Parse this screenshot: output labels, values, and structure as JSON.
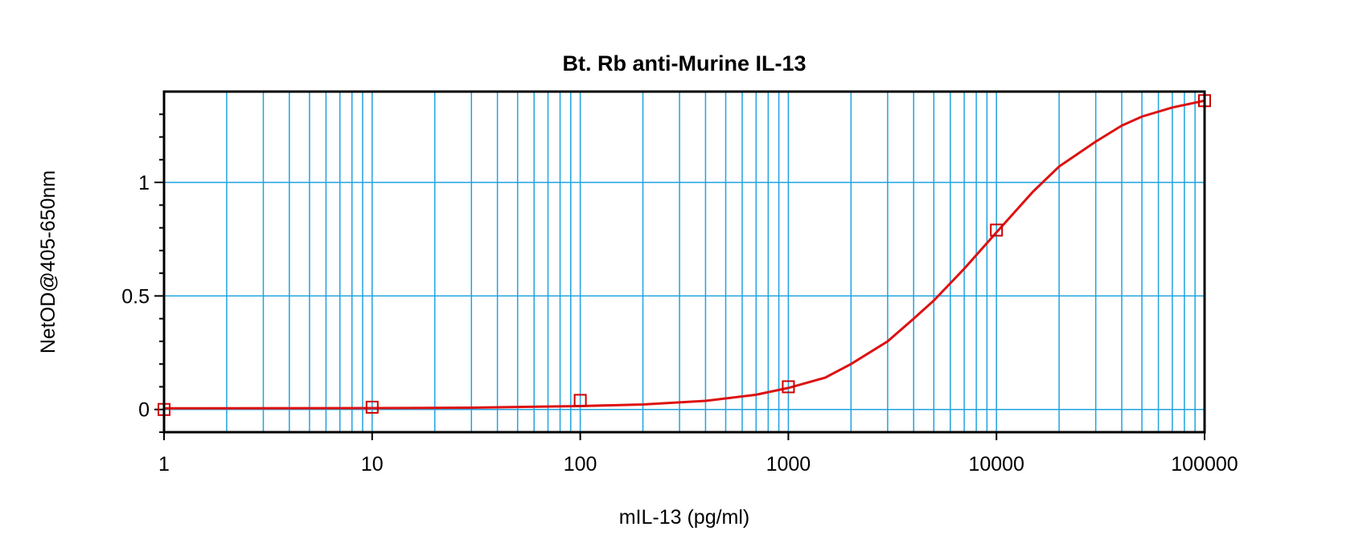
{
  "chart_data": {
    "type": "line",
    "title": "Bt. Rb anti-Murine IL-13",
    "xlabel": "mIL-13 (pg/ml)",
    "ylabel": "NetOD@405-650nm",
    "x_scale": "log",
    "xlim": [
      1,
      100000
    ],
    "ylim": [
      -0.1,
      1.4
    ],
    "x_ticks": [
      1,
      10,
      100,
      1000,
      10000,
      100000
    ],
    "x_tick_labels": [
      "1",
      "10",
      "100",
      "1000",
      "10000",
      "100000"
    ],
    "y_ticks": [
      0,
      0.5,
      1
    ],
    "y_tick_labels": [
      "0",
      "0.5",
      "1"
    ],
    "grid": true,
    "series": [
      {
        "kind": "points",
        "marker": "square",
        "x": [
          1,
          10,
          100,
          1000,
          10000,
          100000
        ],
        "y": [
          0.0,
          0.01,
          0.04,
          0.1,
          0.79,
          1.36
        ]
      },
      {
        "kind": "fit-curve",
        "x": [
          1,
          10,
          30,
          100,
          200,
          400,
          700,
          1000,
          1500,
          2000,
          3000,
          4000,
          5000,
          7000,
          10000,
          15000,
          20000,
          30000,
          40000,
          50000,
          70000,
          100000
        ],
        "y": [
          0.005,
          0.006,
          0.008,
          0.015,
          0.022,
          0.038,
          0.065,
          0.095,
          0.14,
          0.2,
          0.3,
          0.4,
          0.48,
          0.62,
          0.78,
          0.96,
          1.07,
          1.18,
          1.25,
          1.29,
          1.33,
          1.36
        ]
      }
    ],
    "colors": {
      "curve": "#dd1111",
      "marker": "#cc0000",
      "grid": "#1fa3e0",
      "frame": "#000000"
    }
  }
}
